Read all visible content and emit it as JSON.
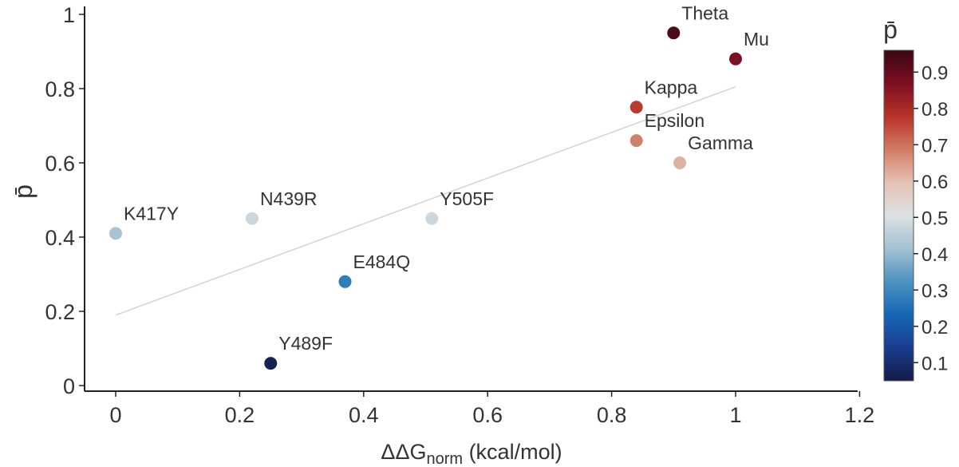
{
  "chart_data": {
    "type": "scatter",
    "xlabel_main": "ΔΔG",
    "xlabel_sub": "norm",
    "xlabel_unit": " (kcal/mol)",
    "ylabel": "p̄",
    "xlim": [
      -0.05,
      1.2
    ],
    "ylim": [
      -0.01,
      1.02
    ],
    "x_ticks": [
      0,
      0.2,
      0.4,
      0.6,
      0.8,
      1.0,
      1.2
    ],
    "x_tick_labels": [
      "0",
      "0.2",
      "0.4",
      "0.6",
      "0.8",
      "1",
      "1.2"
    ],
    "y_ticks": [
      0,
      0.2,
      0.4,
      0.6,
      0.8,
      1.0
    ],
    "y_tick_labels": [
      "0",
      "0.2",
      "0.4",
      "0.6",
      "0.8",
      "1"
    ],
    "points": [
      {
        "label": "K417Y",
        "x": 0.0,
        "y": 0.41,
        "color": "#a8c4d2"
      },
      {
        "label": "N439R",
        "x": 0.22,
        "y": 0.45,
        "color": "#ccd6dc"
      },
      {
        "label": "Y505F",
        "x": 0.51,
        "y": 0.45,
        "color": "#ccd6dc"
      },
      {
        "label": "E484Q",
        "x": 0.37,
        "y": 0.28,
        "color": "#2e7fb6"
      },
      {
        "label": "Y489F",
        "x": 0.25,
        "y": 0.06,
        "color": "#17224f"
      },
      {
        "label": "Theta",
        "x": 0.9,
        "y": 0.95,
        "color": "#4a0c18"
      },
      {
        "label": "Mu",
        "x": 1.0,
        "y": 0.88,
        "color": "#7c1226"
      },
      {
        "label": "Kappa",
        "x": 0.84,
        "y": 0.75,
        "color": "#b83c30"
      },
      {
        "label": "Epsilon",
        "x": 0.84,
        "y": 0.66,
        "color": "#cd8170"
      },
      {
        "label": "Gamma",
        "x": 0.91,
        "y": 0.6,
        "color": "#ddb2a6"
      }
    ],
    "trendline": {
      "x": [
        0.0,
        1.0
      ],
      "y": [
        0.19,
        0.805
      ],
      "color": "#d4d4d4"
    },
    "colorbar": {
      "title": "p̄",
      "range": [
        0.05,
        0.96
      ],
      "ticks": [
        0.1,
        0.2,
        0.3,
        0.4,
        0.5,
        0.6,
        0.7,
        0.8,
        0.9
      ],
      "tick_labels": [
        "0.1",
        "0.2",
        "0.3",
        "0.4",
        "0.5",
        "0.6",
        "0.7",
        "0.8",
        "0.9"
      ],
      "colors": [
        "#131a47",
        "#1a3c8e",
        "#1766b5",
        "#4d92c0",
        "#a3c1d2",
        "#dde0e2",
        "#e6c2b5",
        "#d27c65",
        "#b93228",
        "#7c0e22",
        "#3a0712"
      ]
    }
  }
}
